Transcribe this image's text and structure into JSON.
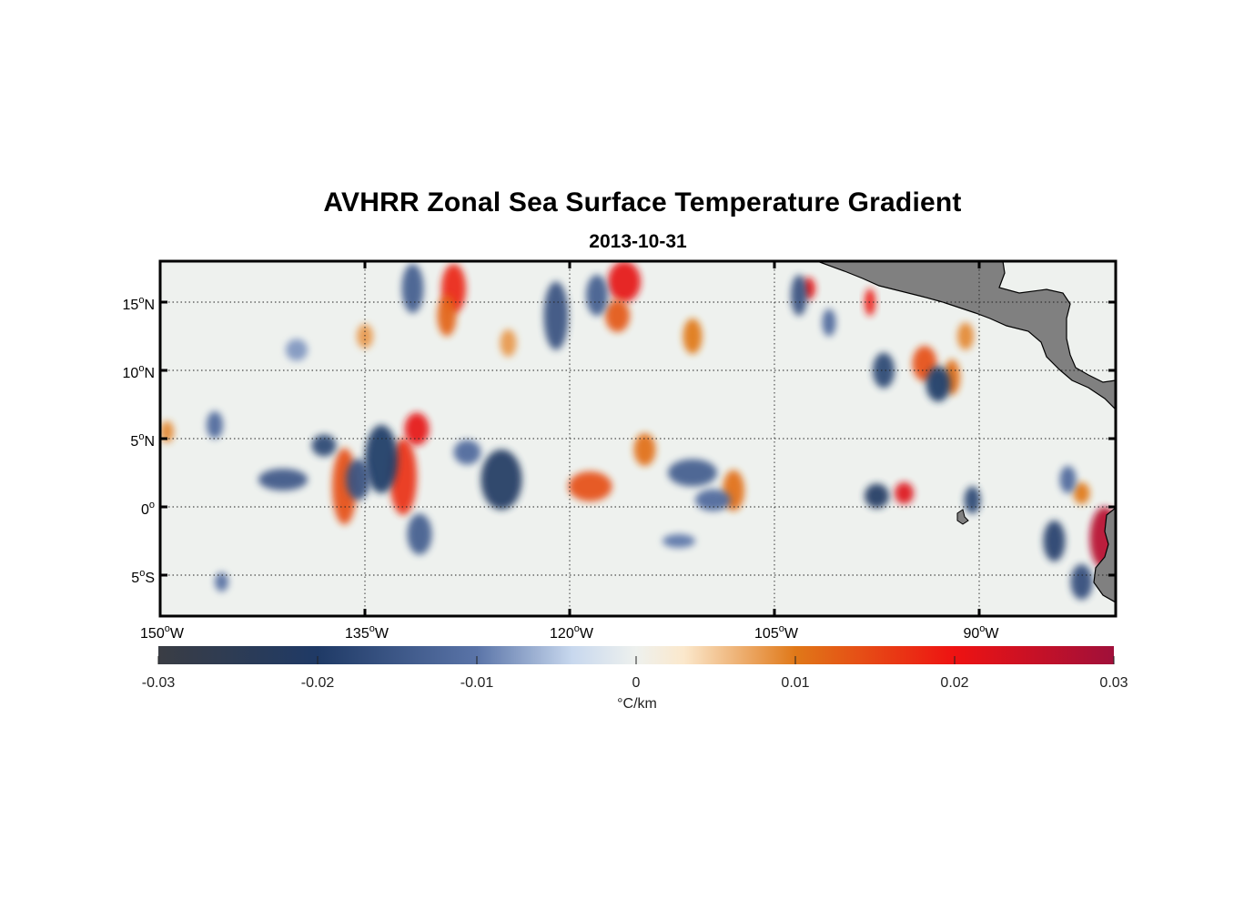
{
  "title": "AVHRR Zonal Sea Surface Temperature Gradient",
  "subtitle": "2013-10-31",
  "map": {
    "lon_range": [
      -150,
      -80
    ],
    "lat_range": [
      -8,
      18
    ],
    "lon_ticks": [
      {
        "value": -150,
        "num": "150",
        "dir": "W"
      },
      {
        "value": -135,
        "num": "135",
        "dir": "W"
      },
      {
        "value": -120,
        "num": "120",
        "dir": "W"
      },
      {
        "value": -105,
        "num": "105",
        "dir": "W"
      },
      {
        "value": -90,
        "num": "90",
        "dir": "W"
      }
    ],
    "lat_ticks": [
      {
        "value": 15,
        "num": "15",
        "dir": "N"
      },
      {
        "value": 10,
        "num": "10",
        "dir": "N"
      },
      {
        "value": 5,
        "num": "5",
        "dir": "N"
      },
      {
        "value": 0,
        "num": "0",
        "dir": ""
      },
      {
        "value": -5,
        "num": "5",
        "dir": "S"
      }
    ],
    "grid": "dotted",
    "land_color": "#808080",
    "features": [
      {
        "lon": -136.5,
        "lat": 1.5,
        "rx": 0.9,
        "ry": 2.8,
        "value": 0.014
      },
      {
        "lon": -132.2,
        "lat": 2.2,
        "rx": 1.0,
        "ry": 2.8,
        "value": 0.017
      },
      {
        "lon": -131.2,
        "lat": 5.7,
        "rx": 0.9,
        "ry": 1.2,
        "value": 0.021
      },
      {
        "lon": -128.5,
        "lat": 16.0,
        "rx": 0.9,
        "ry": 1.8,
        "value": 0.018
      },
      {
        "lon": -129.0,
        "lat": 14.0,
        "rx": 0.7,
        "ry": 1.5,
        "value": 0.012
      },
      {
        "lon": -116.0,
        "lat": 16.5,
        "rx": 1.2,
        "ry": 1.5,
        "value": 0.021
      },
      {
        "lon": -116.5,
        "lat": 14.0,
        "rx": 0.9,
        "ry": 1.2,
        "value": 0.013
      },
      {
        "lon": -118.5,
        "lat": 1.5,
        "rx": 1.6,
        "ry": 1.1,
        "value": 0.014
      },
      {
        "lon": -114.5,
        "lat": 4.2,
        "rx": 0.8,
        "ry": 1.2,
        "value": 0.011
      },
      {
        "lon": -108.0,
        "lat": 1.2,
        "rx": 0.8,
        "ry": 1.5,
        "value": 0.011
      },
      {
        "lon": -111.0,
        "lat": 12.5,
        "rx": 0.7,
        "ry": 1.3,
        "value": 0.01
      },
      {
        "lon": -102.5,
        "lat": 16.0,
        "rx": 0.5,
        "ry": 0.8,
        "value": 0.021
      },
      {
        "lon": -98.0,
        "lat": 15.0,
        "rx": 0.4,
        "ry": 1.0,
        "value": 0.019
      },
      {
        "lon": -94.0,
        "lat": 10.5,
        "rx": 0.9,
        "ry": 1.3,
        "value": 0.014
      },
      {
        "lon": -92.0,
        "lat": 9.5,
        "rx": 0.6,
        "ry": 1.3,
        "value": 0.011
      },
      {
        "lon": -91.0,
        "lat": 12.5,
        "rx": 0.6,
        "ry": 1.0,
        "value": 0.009
      },
      {
        "lon": -95.5,
        "lat": 1.0,
        "rx": 0.7,
        "ry": 0.8,
        "value": 0.022
      },
      {
        "lon": -80.8,
        "lat": -2.3,
        "rx": 1.1,
        "ry": 2.3,
        "value": 0.027
      },
      {
        "lon": -82.5,
        "lat": 1.0,
        "rx": 0.6,
        "ry": 0.8,
        "value": 0.01
      },
      {
        "lon": -141.0,
        "lat": 2.0,
        "rx": 1.8,
        "ry": 0.8,
        "value": -0.015
      },
      {
        "lon": -138.0,
        "lat": 4.5,
        "rx": 0.9,
        "ry": 0.8,
        "value": -0.018
      },
      {
        "lon": -133.8,
        "lat": 3.5,
        "rx": 1.2,
        "ry": 2.5,
        "value": -0.02
      },
      {
        "lon": -135.5,
        "lat": 2.0,
        "rx": 0.9,
        "ry": 1.5,
        "value": -0.016
      },
      {
        "lon": -131.5,
        "lat": 16.0,
        "rx": 0.8,
        "ry": 1.8,
        "value": -0.014
      },
      {
        "lon": -125.0,
        "lat": 2.0,
        "rx": 1.5,
        "ry": 2.2,
        "value": -0.021
      },
      {
        "lon": -121.0,
        "lat": 14.0,
        "rx": 0.9,
        "ry": 2.5,
        "value": -0.016
      },
      {
        "lon": -118.0,
        "lat": 15.5,
        "rx": 0.8,
        "ry": 1.5,
        "value": -0.014
      },
      {
        "lon": -111.0,
        "lat": 2.5,
        "rx": 1.8,
        "ry": 1.0,
        "value": -0.014
      },
      {
        "lon": -109.5,
        "lat": 0.5,
        "rx": 1.3,
        "ry": 0.8,
        "value": -0.012
      },
      {
        "lon": -131.0,
        "lat": -2.0,
        "rx": 0.9,
        "ry": 1.5,
        "value": -0.014
      },
      {
        "lon": -103.2,
        "lat": 15.5,
        "rx": 0.6,
        "ry": 1.5,
        "value": -0.016
      },
      {
        "lon": -101.0,
        "lat": 13.5,
        "rx": 0.5,
        "ry": 1.0,
        "value": -0.012
      },
      {
        "lon": -97.0,
        "lat": 10.0,
        "rx": 0.8,
        "ry": 1.3,
        "value": -0.018
      },
      {
        "lon": -93.0,
        "lat": 9.0,
        "rx": 0.9,
        "ry": 1.3,
        "value": -0.02
      },
      {
        "lon": -97.5,
        "lat": 0.8,
        "rx": 0.9,
        "ry": 0.9,
        "value": -0.021
      },
      {
        "lon": -90.5,
        "lat": 0.5,
        "rx": 0.6,
        "ry": 1.0,
        "value": -0.018
      },
      {
        "lon": -84.5,
        "lat": -2.5,
        "rx": 0.8,
        "ry": 1.5,
        "value": -0.019
      },
      {
        "lon": -82.5,
        "lat": -5.5,
        "rx": 0.8,
        "ry": 1.3,
        "value": -0.017
      },
      {
        "lon": -83.5,
        "lat": 2.0,
        "rx": 0.6,
        "ry": 1.0,
        "value": -0.012
      },
      {
        "lon": -146.0,
        "lat": 6.0,
        "rx": 0.6,
        "ry": 1.0,
        "value": -0.012
      },
      {
        "lon": -145.5,
        "lat": -5.5,
        "rx": 0.5,
        "ry": 0.7,
        "value": -0.011
      },
      {
        "lon": -127.5,
        "lat": 4.0,
        "rx": 1.0,
        "ry": 0.9,
        "value": -0.012
      },
      {
        "lon": -112.0,
        "lat": -2.5,
        "rx": 1.2,
        "ry": 0.5,
        "value": -0.01
      },
      {
        "lon": -140.0,
        "lat": 11.5,
        "rx": 0.8,
        "ry": 0.8,
        "value": -0.008
      },
      {
        "lon": -149.5,
        "lat": 5.5,
        "rx": 0.5,
        "ry": 0.8,
        "value": 0.009
      },
      {
        "lon": -135.0,
        "lat": 12.5,
        "rx": 0.6,
        "ry": 0.9,
        "value": 0.008
      },
      {
        "lon": -124.5,
        "lat": 12.0,
        "rx": 0.6,
        "ry": 1.0,
        "value": 0.008
      }
    ]
  },
  "colorbar": {
    "min": -0.03,
    "max": 0.03,
    "ticks": [
      {
        "value": -0.03,
        "label": "-0.03"
      },
      {
        "value": -0.02,
        "label": "-0.02"
      },
      {
        "value": -0.01,
        "label": "-0.01"
      },
      {
        "value": 0,
        "label": "0"
      },
      {
        "value": 0.01,
        "label": "0.01"
      },
      {
        "value": 0.02,
        "label": "0.02"
      },
      {
        "value": 0.03,
        "label": "0.03"
      }
    ],
    "unit_label": "°C/km",
    "stops": [
      {
        "value": -0.03,
        "color": "#3a3d44"
      },
      {
        "value": -0.02,
        "color": "#1f3a66"
      },
      {
        "value": -0.01,
        "color": "#5a74a8"
      },
      {
        "value": -0.004,
        "color": "#c8d8ee"
      },
      {
        "value": 0,
        "color": "#eef1ee"
      },
      {
        "value": 0.003,
        "color": "#fbe8cc"
      },
      {
        "value": 0.01,
        "color": "#e07818"
      },
      {
        "value": 0.02,
        "color": "#ee1212"
      },
      {
        "value": 0.03,
        "color": "#a0103a"
      }
    ]
  }
}
